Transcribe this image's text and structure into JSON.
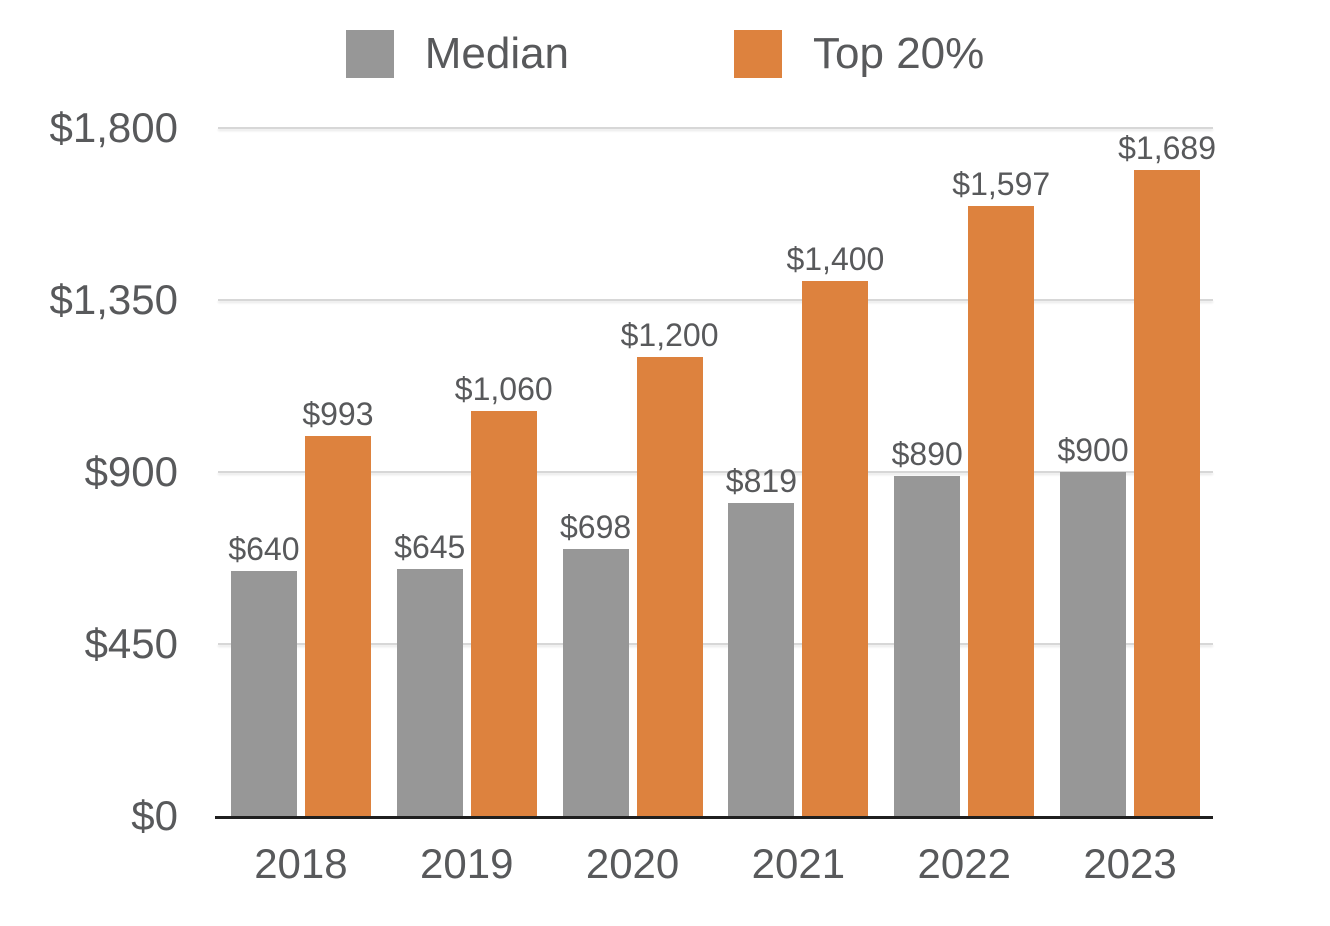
{
  "chart_data": {
    "type": "bar",
    "title": "",
    "categories": [
      "2018",
      "2019",
      "2020",
      "2021",
      "2022",
      "2023"
    ],
    "series": [
      {
        "name": "Median",
        "color": "#979797",
        "values": [
          640,
          645,
          698,
          819,
          890,
          900
        ],
        "labels": [
          "$640",
          "$645",
          "$698",
          "$819",
          "$890",
          "$900"
        ]
      },
      {
        "name": "Top 20%",
        "color": "#DD823E",
        "values": [
          993,
          1060,
          1200,
          1400,
          1597,
          1689
        ],
        "labels": [
          "$993",
          "$1,060",
          "$1,200",
          "$1,400",
          "$1,597",
          "$1,689"
        ]
      }
    ],
    "y_axis": {
      "max": 1800,
      "ticks": [
        0,
        450,
        900,
        1350,
        1800
      ],
      "tick_labels": [
        "$0",
        "$450",
        "$900",
        "$1,350",
        "$1,800"
      ]
    },
    "xlabel": "",
    "ylabel": "",
    "ylim": [
      0,
      1800
    ],
    "grid": true,
    "legend_position": "top",
    "legend": {
      "entries": [
        {
          "label": "Median",
          "color": "#979797"
        },
        {
          "label": "Top 20%",
          "color": "#DD823E"
        }
      ]
    },
    "bar_value_labels_shown": true
  },
  "colors": {
    "background": "#FFFFFF",
    "bar_gray": "#979797",
    "bar_orange": "#DD823E",
    "text": "#58595B",
    "gridline": "#D7D7D7",
    "axis_line": "#1F1F1F"
  }
}
